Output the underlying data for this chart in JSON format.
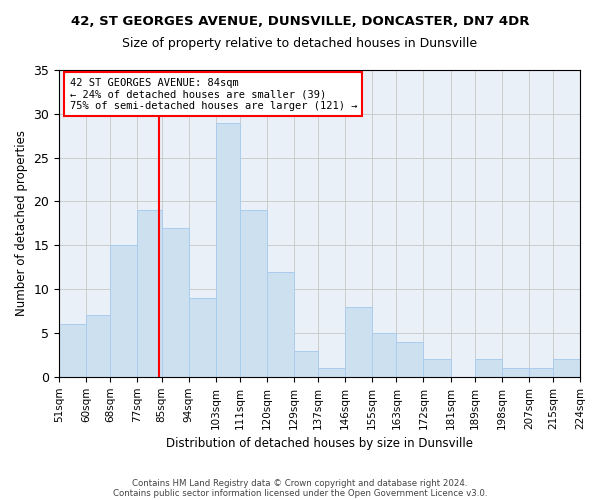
{
  "title1": "42, ST GEORGES AVENUE, DUNSVILLE, DONCASTER, DN7 4DR",
  "title2": "Size of property relative to detached houses in Dunsville",
  "xlabel": "Distribution of detached houses by size in Dunsville",
  "ylabel": "Number of detached properties",
  "bin_labels": [
    "51sqm",
    "60sqm",
    "68sqm",
    "77sqm",
    "85sqm",
    "94sqm",
    "103sqm",
    "111sqm",
    "120sqm",
    "129sqm",
    "137sqm",
    "146sqm",
    "155sqm",
    "163sqm",
    "172sqm",
    "181sqm",
    "189sqm",
    "198sqm",
    "207sqm",
    "215sqm",
    "224sqm"
  ],
  "values": [
    6,
    7,
    15,
    19,
    17,
    9,
    29,
    19,
    12,
    3,
    1,
    8,
    5,
    4,
    2,
    0,
    2,
    1,
    1,
    2
  ],
  "bin_edges": [
    51,
    60,
    68,
    77,
    85,
    94,
    103,
    111,
    120,
    129,
    137,
    146,
    155,
    163,
    172,
    181,
    189,
    198,
    207,
    215,
    224
  ],
  "bar_color": "#cce0f0",
  "bar_edgecolor": "#aaccee",
  "vline_x": 84,
  "vline_color": "red",
  "annotation_line1": "42 ST GEORGES AVENUE: 84sqm",
  "annotation_line2": "← 24% of detached houses are smaller (39)",
  "annotation_line3": "75% of semi-detached houses are larger (121) →",
  "annotation_box_edgecolor": "red",
  "grid_color": "#cccccc",
  "bg_color": "#eaf0f8",
  "ylim": [
    0,
    35
  ],
  "yticks": [
    0,
    5,
    10,
    15,
    20,
    25,
    30,
    35
  ],
  "footnote1": "Contains HM Land Registry data © Crown copyright and database right 2024.",
  "footnote2": "Contains public sector information licensed under the Open Government Licence v3.0."
}
